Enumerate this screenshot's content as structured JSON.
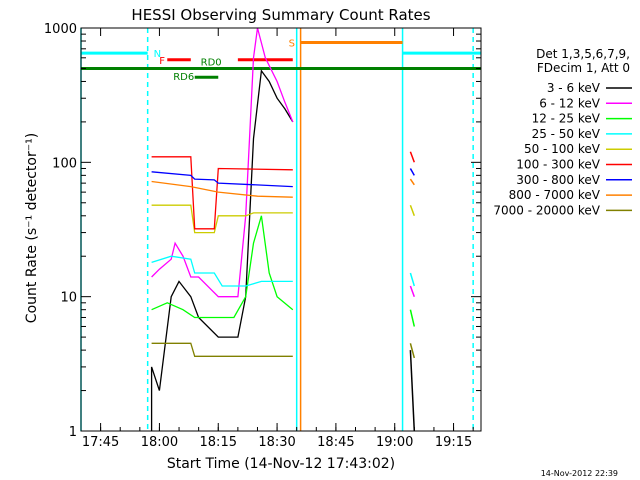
{
  "chart_data": {
    "type": "line",
    "title": "HESSI Observing Summary Count Rates",
    "xlabel": "Start Time (14-Nov-12 17:43:02)",
    "ylabel": "Count Rate (s⁻¹ detector⁻¹)",
    "y_scale": "log",
    "ylim": [
      1,
      1000
    ],
    "xlim": [
      "17:40",
      "19:22"
    ],
    "x_ticks": [
      "17:45",
      "18:00",
      "18:15",
      "18:30",
      "18:45",
      "19:00",
      "19:15"
    ],
    "y_ticks": [
      "1",
      "10",
      "100",
      "1000"
    ],
    "grid": false,
    "legend_header": [
      "Det 1,3,5,6,7,9,",
      "FDecim 1, Att 0"
    ],
    "legend_position": "right",
    "timestamp": "14-Nov-2012 22:39",
    "flag_labels": [
      "N",
      "F",
      "RD0",
      "RD6",
      "S"
    ],
    "flags": [
      {
        "label": "N",
        "color": "#00ffff",
        "y": 650,
        "segments": [
          [
            "17:40",
            "17:57"
          ],
          [
            "19:02",
            "19:22"
          ]
        ]
      },
      {
        "label": "F",
        "color": "#ff0000",
        "y": 580,
        "segments": [
          [
            "18:02",
            "18:08"
          ],
          [
            "18:20",
            "18:34"
          ]
        ]
      },
      {
        "label": "RD0",
        "color": "#008000",
        "y": 500,
        "segments": [
          [
            "17:40",
            "19:22"
          ]
        ]
      },
      {
        "label": "RD6",
        "color": "#008000",
        "y": 430,
        "segments": [
          [
            "18:09",
            "18:15"
          ]
        ]
      },
      {
        "label": "S",
        "color": "#ff8000",
        "y": 780,
        "segments": [
          [
            "18:36",
            "19:02"
          ]
        ]
      }
    ],
    "vlines": [
      {
        "time": "17:57",
        "color": "#00ffff",
        "style": "dashed"
      },
      {
        "time": "19:02",
        "color": "#00ffff",
        "style": "solid"
      },
      {
        "time": "19:20",
        "color": "#00ffff",
        "style": "dashed"
      },
      {
        "time": "17:40",
        "color": "#00ffff",
        "style": "solid"
      },
      {
        "time": "18:35",
        "color": "#00ffff",
        "style": "solid"
      },
      {
        "time": "18:36",
        "color": "#ff8000",
        "style": "solid"
      }
    ],
    "series": [
      {
        "name": "3 - 6 keV",
        "color": "#000000",
        "points": [
          [
            "17:58",
            1
          ],
          [
            "17:58",
            3
          ],
          [
            "18:00",
            2
          ],
          [
            "18:03",
            10
          ],
          [
            "18:05",
            13
          ],
          [
            "18:08",
            10
          ],
          [
            "18:10",
            7
          ],
          [
            "18:15",
            5
          ],
          [
            "18:20",
            5
          ],
          [
            "18:22",
            10
          ],
          [
            "18:24",
            150
          ],
          [
            "18:26",
            480
          ],
          [
            "18:28",
            400
          ],
          [
            "18:30",
            300
          ],
          [
            "18:32",
            250
          ],
          [
            "18:34",
            200
          ]
        ],
        "segments2": [
          [
            "19:04",
            4
          ],
          [
            "19:05",
            1
          ]
        ]
      },
      {
        "name": "6 - 12 keV",
        "color": "#ff00ff",
        "points": [
          [
            "17:58",
            14
          ],
          [
            "18:00",
            16
          ],
          [
            "18:03",
            19
          ],
          [
            "18:04",
            25
          ],
          [
            "18:06",
            20
          ],
          [
            "18:08",
            14
          ],
          [
            "18:10",
            14
          ],
          [
            "18:15",
            10
          ],
          [
            "18:20",
            10
          ],
          [
            "18:22",
            40
          ],
          [
            "18:24",
            600
          ],
          [
            "18:25",
            1000
          ],
          [
            "18:27",
            600
          ],
          [
            "18:30",
            400
          ],
          [
            "18:32",
            280
          ],
          [
            "18:34",
            200
          ]
        ],
        "segments2": [
          [
            "19:04",
            12
          ],
          [
            "19:05",
            10
          ]
        ]
      },
      {
        "name": "12 - 25 keV",
        "color": "#00ff00",
        "points": [
          [
            "17:58",
            8
          ],
          [
            "18:02",
            9
          ],
          [
            "18:06",
            8
          ],
          [
            "18:09",
            7
          ],
          [
            "18:12",
            7
          ],
          [
            "18:17",
            7
          ],
          [
            "18:19",
            7
          ],
          [
            "18:22",
            10
          ],
          [
            "18:24",
            25
          ],
          [
            "18:26",
            40
          ],
          [
            "18:28",
            15
          ],
          [
            "18:30",
            10
          ],
          [
            "18:34",
            8
          ]
        ],
        "segments2": [
          [
            "19:04",
            8
          ],
          [
            "19:05",
            6
          ]
        ]
      },
      {
        "name": "25 - 50 keV",
        "color": "#00ffff",
        "points": [
          [
            "17:58",
            18
          ],
          [
            "18:03",
            20
          ],
          [
            "18:08",
            19
          ],
          [
            "18:09",
            15
          ],
          [
            "18:14",
            15
          ],
          [
            "18:16",
            12
          ],
          [
            "18:22",
            12
          ],
          [
            "18:26",
            13
          ],
          [
            "18:30",
            13
          ],
          [
            "18:34",
            13
          ]
        ],
        "segments2": [
          [
            "19:04",
            15
          ],
          [
            "19:05",
            12
          ]
        ]
      },
      {
        "name": "50 - 100 keV",
        "color": "#cccc00",
        "points": [
          [
            "17:58",
            48
          ],
          [
            "18:08",
            48
          ],
          [
            "18:09",
            30
          ],
          [
            "18:14",
            30
          ],
          [
            "18:15",
            40
          ],
          [
            "18:22",
            40
          ],
          [
            "18:24",
            42
          ],
          [
            "18:34",
            42
          ]
        ],
        "segments2": [
          [
            "19:04",
            48
          ],
          [
            "19:05",
            40
          ]
        ]
      },
      {
        "name": "100 - 300 keV",
        "color": "#ff0000",
        "points": [
          [
            "17:58",
            110
          ],
          [
            "18:08",
            110
          ],
          [
            "18:09",
            32
          ],
          [
            "18:14",
            32
          ],
          [
            "18:15",
            90
          ],
          [
            "18:34",
            88
          ]
        ],
        "segments2": [
          [
            "19:04",
            120
          ],
          [
            "19:05",
            100
          ]
        ]
      },
      {
        "name": "300 - 800 keV",
        "color": "#0000ff",
        "points": [
          [
            "17:58",
            85
          ],
          [
            "18:08",
            80
          ],
          [
            "18:09",
            75
          ],
          [
            "18:14",
            74
          ],
          [
            "18:15",
            70
          ],
          [
            "18:34",
            66
          ]
        ],
        "segments2": [
          [
            "19:04",
            90
          ],
          [
            "19:05",
            80
          ]
        ]
      },
      {
        "name": "800 - 7000 keV",
        "color": "#ff8000",
        "points": [
          [
            "17:58",
            72
          ],
          [
            "18:08",
            66
          ],
          [
            "18:15",
            60
          ],
          [
            "18:25",
            56
          ],
          [
            "18:34",
            55
          ]
        ],
        "segments2": [
          [
            "19:04",
            75
          ],
          [
            "19:05",
            68
          ]
        ]
      },
      {
        "name": "7000 - 20000 keV",
        "color": "#808000",
        "points": [
          [
            "17:58",
            4.5
          ],
          [
            "18:08",
            4.5
          ],
          [
            "18:09",
            3.6
          ],
          [
            "18:34",
            3.6
          ]
        ],
        "segments2": [
          [
            "19:04",
            4.5
          ],
          [
            "19:05",
            3.5
          ]
        ]
      }
    ]
  }
}
